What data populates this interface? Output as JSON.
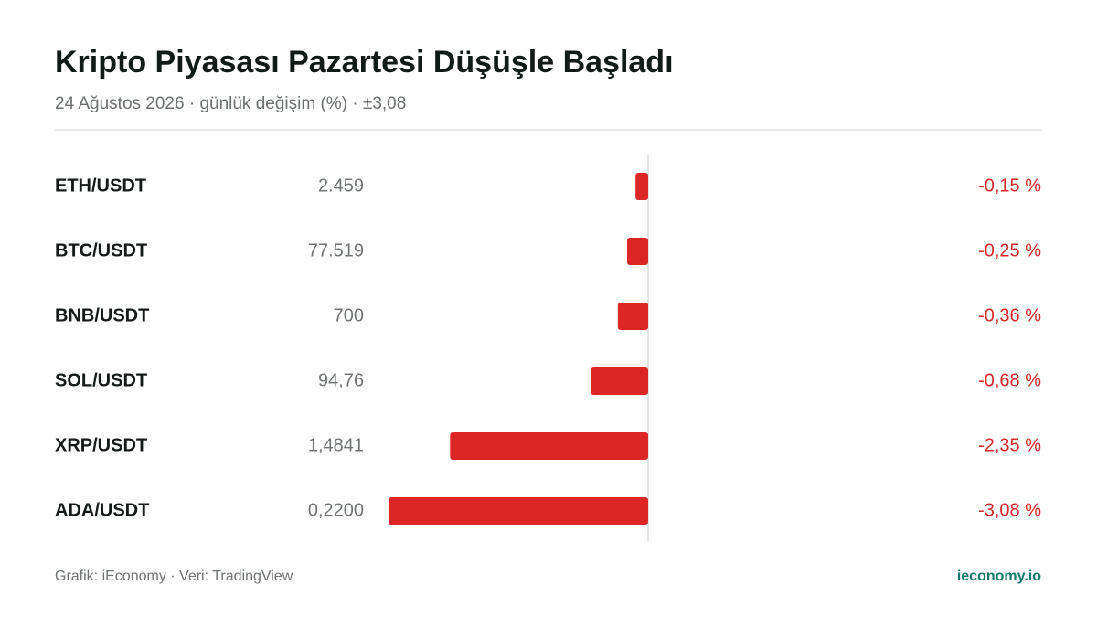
{
  "chart_data": {
    "type": "bar",
    "orientation": "horizontal",
    "title": "Kripto Piyasası Pazartesi Düşüşle Başladı",
    "subtitle": "24 Ağustos 2026 · günlük değişim (%) · ±3,08",
    "categories": [
      "ETH/USDT",
      "BTC/USDT",
      "BNB/USDT",
      "SOL/USDT",
      "XRP/USDT",
      "ADA/USDT"
    ],
    "prices": [
      "2.459",
      "77.519",
      "700",
      "94,76",
      "1,4841",
      "0,2200"
    ],
    "values": [
      -0.15,
      -0.25,
      -0.36,
      -0.68,
      -2.35,
      -3.08
    ],
    "value_labels": [
      "-0,15 %",
      "-0,25 %",
      "-0,36 %",
      "-0,68 %",
      "-2,35 %",
      "-3,08 %"
    ],
    "color": "#dc2626",
    "xlim": [
      -3.08,
      3.08
    ],
    "source": "Grafik: iEconomy · Veri: TradingView",
    "brand": "ieconomy.io"
  }
}
